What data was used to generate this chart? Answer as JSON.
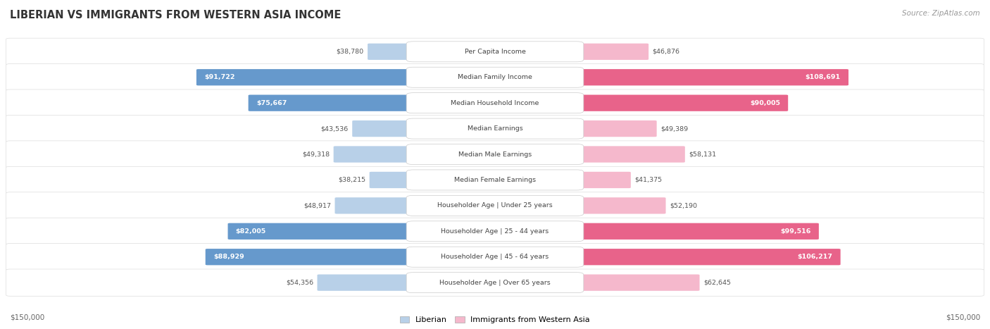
{
  "title": "LIBERIAN VS IMMIGRANTS FROM WESTERN ASIA INCOME",
  "source": "Source: ZipAtlas.com",
  "categories": [
    "Per Capita Income",
    "Median Family Income",
    "Median Household Income",
    "Median Earnings",
    "Median Male Earnings",
    "Median Female Earnings",
    "Householder Age | Under 25 years",
    "Householder Age | 25 - 44 years",
    "Householder Age | 45 - 64 years",
    "Householder Age | Over 65 years"
  ],
  "liberian_values": [
    38780,
    91722,
    75667,
    43536,
    49318,
    38215,
    48917,
    82005,
    88929,
    54356
  ],
  "immigrant_values": [
    46876,
    108691,
    90005,
    49389,
    58131,
    41375,
    52190,
    99516,
    106217,
    62645
  ],
  "liberian_color_light": "#b8d0e8",
  "liberian_color_dark": "#6699cc",
  "immigrant_color_light": "#f5b8cc",
  "immigrant_color_dark": "#e8638a",
  "max_value": 150000,
  "bg_color": "#ffffff",
  "threshold_large": 70000
}
